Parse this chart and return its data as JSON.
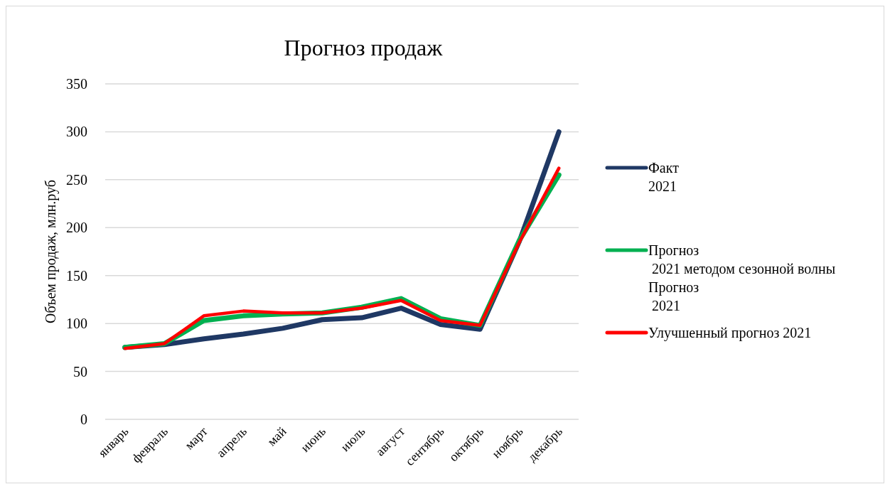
{
  "chart_data": {
    "type": "line",
    "title": "Прогноз продаж",
    "ylabel": "Объем продаж, млн.руб",
    "categories": [
      "январь",
      "февраль",
      "март",
      "апрель",
      "май",
      "июнь",
      "июль",
      "август",
      "сентябрь",
      "октябрь",
      "ноябрь",
      "декабрь"
    ],
    "series": [
      {
        "name": "Факт\n2021",
        "color": "#1f3864",
        "values": [
          75,
          78,
          84,
          89,
          95,
          104,
          106,
          116,
          99,
          94,
          186,
          300
        ]
      },
      {
        "name": "Прогноз\n 2021 методом сезонной волны",
        "color": "#00b050",
        "values": [
          75,
          79,
          103,
          108,
          110,
          111,
          117,
          126,
          105,
          98,
          187,
          255
        ]
      },
      {
        "name": "Улучшенный прогноз 2021",
        "color": "#ff0000",
        "values": [
          74,
          79,
          108,
          113,
          111,
          111,
          116,
          124,
          103,
          98,
          185,
          262
        ]
      }
    ],
    "annotations": [
      "Прогноз\n 2021"
    ],
    "ylim": [
      0,
      350
    ],
    "yticks": [
      0,
      50,
      100,
      150,
      200,
      250,
      300,
      350
    ],
    "grid": "y",
    "legend": "right",
    "marker": "none",
    "line_style": "solid"
  }
}
